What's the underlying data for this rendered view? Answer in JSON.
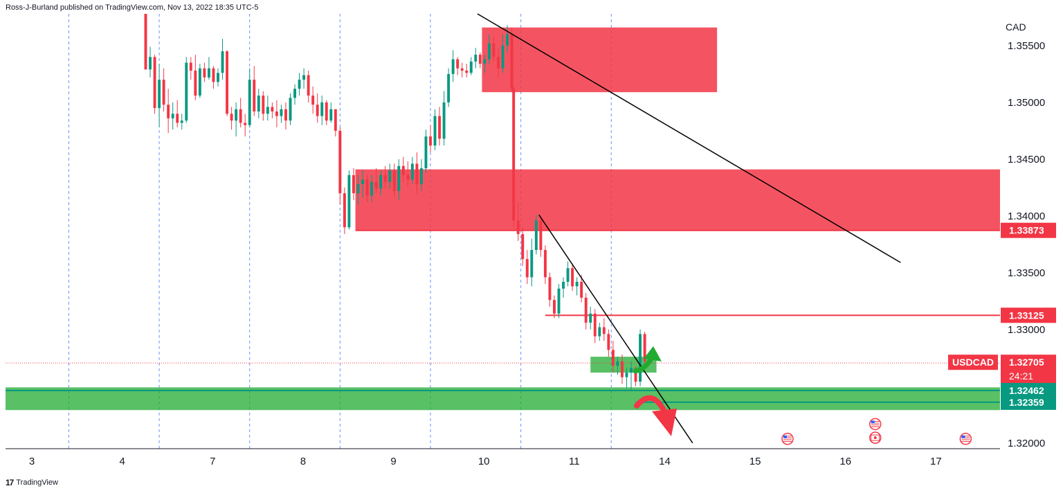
{
  "header": {
    "published_text": "Ross-J-Burland published on TradingView.com, Nov 13, 2022 18:35 UTC-5"
  },
  "footer": {
    "logo_icon": "tradingview-logo-icon",
    "brand": "TradingView"
  },
  "chart_data": {
    "type": "candlestick",
    "symbol": "USDCAD",
    "currency_label": "CAD",
    "y_ticks": [
      "1.35500",
      "1.35000",
      "1.34500",
      "1.34000",
      "1.33500",
      "1.33000",
      "1.32000"
    ],
    "y_tick_values": [
      1.355,
      1.35,
      1.345,
      1.34,
      1.335,
      1.33,
      1.32
    ],
    "y_range": [
      1.3195,
      1.3578
    ],
    "x_ticks": [
      "3",
      "4",
      "7",
      "8",
      "9",
      "10",
      "11",
      "14",
      "15",
      "16",
      "17"
    ],
    "x_range": [
      0,
      11.0
    ],
    "price_labels": [
      {
        "text": "1.33873",
        "value": 1.33873,
        "color": "#f23645"
      },
      {
        "text": "1.33125",
        "value": 1.33125,
        "color": "#f23645"
      },
      {
        "text": "1.32705",
        "value": 1.32705,
        "color": "#f23645",
        "symbol_text": "USDCAD",
        "countdown": "24:21"
      },
      {
        "text": "1.32462",
        "value": 1.32462,
        "color": "#089981"
      },
      {
        "text": "1.32359",
        "value": 1.32359,
        "color": "#089981"
      }
    ],
    "current_price": 1.32705,
    "zones": [
      {
        "kind": "resistance",
        "x0": 5.27,
        "x1": 7.87,
        "y0": 1.3509,
        "y1": 1.3566,
        "color": "#f23645"
      },
      {
        "kind": "resistance",
        "x0": 3.87,
        "x1": 11.0,
        "y0": 1.33873,
        "y1": 1.3441,
        "color": "#f23645"
      },
      {
        "kind": "support",
        "x0": 0,
        "x1": 11.0,
        "y0": 1.3229,
        "y1": 1.3249,
        "color": "#22ab32"
      },
      {
        "kind": "support",
        "x0": 6.47,
        "x1": 7.2,
        "y0": 1.3262,
        "y1": 1.3276,
        "color": "#22ab32"
      }
    ],
    "horizontal_lines": [
      {
        "x0": 3.87,
        "x1": 11.0,
        "value": 1.33873,
        "color": "#f23645"
      },
      {
        "x0": 5.97,
        "x1": 11.0,
        "value": 1.33125,
        "color": "#f23645"
      },
      {
        "x0": 0,
        "x1": 11.0,
        "value": 1.32462,
        "color": "#089981"
      },
      {
        "x0": 6.97,
        "x1": 11.0,
        "value": 1.32359,
        "color": "#089981"
      }
    ],
    "trendlines": [
      {
        "x0": 5.22,
        "y0": 1.3578,
        "x1": 9.9,
        "y1": 1.3359
      },
      {
        "x0": 5.9,
        "y0": 1.3401,
        "x1": 7.6,
        "y1": 1.32
      }
    ],
    "arrows": [
      {
        "kind": "up",
        "color": "#22ab32"
      },
      {
        "kind": "down",
        "color": "#f23645"
      }
    ],
    "event_icons": [
      {
        "name": "us-flag-icon",
        "x": 8.65,
        "y": 1.32
      },
      {
        "name": "us-flag-icon",
        "x": 9.62,
        "y": 1.3213
      },
      {
        "name": "canada-flag-icon",
        "x": 9.62,
        "y": 1.3201
      },
      {
        "name": "us-flag-icon",
        "x": 10.62,
        "y": 1.32
      }
    ],
    "session_lines_x": [
      0.7,
      1.7,
      2.7,
      3.7,
      4.7,
      5.7,
      6.7
    ],
    "candles": [
      [
        1.55,
        1.3578,
        1.3578,
        1.3529,
        1.3529
      ],
      [
        1.6,
        1.3529,
        1.3549,
        1.3522,
        1.354
      ],
      [
        1.65,
        1.354,
        1.3542,
        1.349,
        1.3495
      ],
      [
        1.7,
        1.3495,
        1.3534,
        1.3478,
        1.352
      ],
      [
        1.75,
        1.352,
        1.353,
        1.3492,
        1.3498
      ],
      [
        1.8,
        1.3498,
        1.3512,
        1.3473,
        1.3486
      ],
      [
        1.85,
        1.3486,
        1.35,
        1.3476,
        1.349
      ],
      [
        1.9,
        1.349,
        1.3502,
        1.3478,
        1.3482
      ],
      [
        1.95,
        1.3482,
        1.349,
        1.3476,
        1.3484
      ],
      [
        2.0,
        1.3484,
        1.354,
        1.3482,
        1.3535
      ],
      [
        2.05,
        1.3535,
        1.354,
        1.352,
        1.3528
      ],
      [
        2.1,
        1.3528,
        1.3542,
        1.3502,
        1.3506
      ],
      [
        2.15,
        1.3506,
        1.3534,
        1.3504,
        1.353
      ],
      [
        2.2,
        1.353,
        1.3535,
        1.3518,
        1.3522
      ],
      [
        2.25,
        1.3522,
        1.354,
        1.352,
        1.353
      ],
      [
        2.3,
        1.353,
        1.3532,
        1.3512,
        1.3518
      ],
      [
        2.35,
        1.3518,
        1.353,
        1.3514,
        1.3526
      ],
      [
        2.4,
        1.3526,
        1.3556,
        1.352,
        1.3545
      ],
      [
        2.45,
        1.3545,
        1.3546,
        1.3488,
        1.349
      ],
      [
        2.5,
        1.349,
        1.3496,
        1.3476,
        1.3484
      ],
      [
        2.55,
        1.3484,
        1.35,
        1.347,
        1.3494
      ],
      [
        2.6,
        1.3494,
        1.3504,
        1.3478,
        1.3482
      ],
      [
        2.65,
        1.3482,
        1.349,
        1.347,
        1.348
      ],
      [
        2.7,
        1.348,
        1.353,
        1.3478,
        1.352
      ],
      [
        2.75,
        1.352,
        1.3532,
        1.3488,
        1.3492
      ],
      [
        2.8,
        1.3492,
        1.3512,
        1.3486,
        1.3506
      ],
      [
        2.85,
        1.3506,
        1.351,
        1.3484,
        1.349
      ],
      [
        2.9,
        1.349,
        1.3506,
        1.3484,
        1.3496
      ],
      [
        2.95,
        1.3496,
        1.35,
        1.3486,
        1.3492
      ],
      [
        3.0,
        1.3492,
        1.3502,
        1.3478,
        1.3488
      ],
      [
        3.05,
        1.3488,
        1.3498,
        1.3482,
        1.3494
      ],
      [
        3.1,
        1.3494,
        1.35,
        1.3476,
        1.3484
      ],
      [
        3.15,
        1.3484,
        1.3508,
        1.348,
        1.3504
      ],
      [
        3.2,
        1.3504,
        1.3516,
        1.3498,
        1.3512
      ],
      [
        3.25,
        1.3512,
        1.3526,
        1.3506,
        1.352
      ],
      [
        3.3,
        1.352,
        1.353,
        1.3512,
        1.3524
      ],
      [
        3.35,
        1.3524,
        1.3528,
        1.35,
        1.3506
      ],
      [
        3.4,
        1.3506,
        1.3514,
        1.349,
        1.3498
      ],
      [
        3.45,
        1.3498,
        1.3508,
        1.3482,
        1.3488
      ],
      [
        3.5,
        1.3488,
        1.3506,
        1.348,
        1.35
      ],
      [
        3.55,
        1.35,
        1.3502,
        1.348,
        1.3484
      ],
      [
        3.6,
        1.3484,
        1.35,
        1.3482,
        1.3494
      ],
      [
        3.65,
        1.3494,
        1.3494,
        1.347,
        1.3475
      ],
      [
        3.7,
        1.3475,
        1.3478,
        1.341,
        1.342
      ],
      [
        3.75,
        1.342,
        1.3425,
        1.3384,
        1.339
      ],
      [
        3.8,
        1.339,
        1.344,
        1.3388,
        1.3436
      ],
      [
        3.85,
        1.3436,
        1.3442,
        1.3414,
        1.342
      ],
      [
        3.9,
        1.342,
        1.3436,
        1.341,
        1.3428
      ],
      [
        3.95,
        1.3428,
        1.344,
        1.3416,
        1.3432
      ],
      [
        4.0,
        1.3432,
        1.3436,
        1.3412,
        1.3418
      ],
      [
        4.05,
        1.3418,
        1.3436,
        1.3412,
        1.343
      ],
      [
        4.1,
        1.343,
        1.3442,
        1.342,
        1.3424
      ],
      [
        4.15,
        1.3424,
        1.344,
        1.3418,
        1.3436
      ],
      [
        4.2,
        1.3436,
        1.3444,
        1.3424,
        1.343
      ],
      [
        4.25,
        1.343,
        1.3446,
        1.3424,
        1.344
      ],
      [
        4.3,
        1.344,
        1.3446,
        1.3416,
        1.3422
      ],
      [
        4.35,
        1.3422,
        1.345,
        1.3414,
        1.3444
      ],
      [
        4.4,
        1.3444,
        1.3452,
        1.343,
        1.3436
      ],
      [
        4.45,
        1.3436,
        1.3448,
        1.3426,
        1.3432
      ],
      [
        4.5,
        1.3432,
        1.3452,
        1.3428,
        1.3446
      ],
      [
        4.55,
        1.3446,
        1.3456,
        1.342,
        1.3428
      ],
      [
        4.6,
        1.3428,
        1.345,
        1.3422,
        1.3442
      ],
      [
        4.65,
        1.3442,
        1.3476,
        1.3438,
        1.347
      ],
      [
        4.7,
        1.347,
        1.348,
        1.3456,
        1.3462
      ],
      [
        4.75,
        1.3462,
        1.3494,
        1.3458,
        1.3488
      ],
      [
        4.8,
        1.3488,
        1.3496,
        1.3462,
        1.3468
      ],
      [
        4.85,
        1.3468,
        1.351,
        1.3462,
        1.35
      ],
      [
        4.9,
        1.35,
        1.353,
        1.3496,
        1.3525
      ],
      [
        4.95,
        1.3525,
        1.3546,
        1.3518,
        1.3538
      ],
      [
        5.0,
        1.3538,
        1.354,
        1.3524,
        1.353
      ],
      [
        5.05,
        1.353,
        1.3535,
        1.3522,
        1.3528
      ],
      [
        5.1,
        1.3528,
        1.3534,
        1.3522,
        1.3526
      ],
      [
        5.15,
        1.3526,
        1.354,
        1.3524,
        1.3536
      ],
      [
        5.2,
        1.3536,
        1.3548,
        1.353,
        1.3542
      ],
      [
        5.25,
        1.3542,
        1.3544,
        1.353,
        1.3534
      ],
      [
        5.3,
        1.3534,
        1.3542,
        1.3526,
        1.3538
      ],
      [
        5.35,
        1.3538,
        1.356,
        1.3534,
        1.3552
      ],
      [
        5.4,
        1.3552,
        1.3558,
        1.3536,
        1.354
      ],
      [
        5.45,
        1.354,
        1.3548,
        1.3522,
        1.353
      ],
      [
        5.5,
        1.353,
        1.356,
        1.3526,
        1.355
      ],
      [
        5.55,
        1.355,
        1.3568,
        1.3544,
        1.356
      ],
      [
        5.6,
        1.356,
        1.3566,
        1.3509,
        1.3512
      ],
      [
        5.62,
        1.3512,
        1.3514,
        1.339,
        1.3396
      ],
      [
        5.67,
        1.3396,
        1.3412,
        1.3378,
        1.3384
      ],
      [
        5.72,
        1.3384,
        1.339,
        1.3356,
        1.3362
      ],
      [
        5.77,
        1.3362,
        1.337,
        1.334,
        1.3346
      ],
      [
        5.82,
        1.3346,
        1.338,
        1.3338,
        1.337
      ],
      [
        5.87,
        1.337,
        1.3401,
        1.3366,
        1.3396
      ],
      [
        5.92,
        1.3396,
        1.3398,
        1.3364,
        1.337
      ],
      [
        5.97,
        1.337,
        1.3374,
        1.334,
        1.3346
      ],
      [
        6.02,
        1.3346,
        1.335,
        1.332,
        1.3326
      ],
      [
        6.07,
        1.3326,
        1.333,
        1.331,
        1.3314
      ],
      [
        6.12,
        1.3314,
        1.334,
        1.331,
        1.3336
      ],
      [
        6.17,
        1.3336,
        1.3346,
        1.3328,
        1.3342
      ],
      [
        6.22,
        1.3342,
        1.336,
        1.3338,
        1.3354
      ],
      [
        6.27,
        1.3354,
        1.3358,
        1.3334,
        1.3338
      ],
      [
        6.32,
        1.3338,
        1.3346,
        1.333,
        1.3342
      ],
      [
        6.37,
        1.3342,
        1.3348,
        1.3324,
        1.3328
      ],
      [
        6.42,
        1.3328,
        1.3332,
        1.33,
        1.3306
      ],
      [
        6.47,
        1.3306,
        1.332,
        1.33,
        1.3314
      ],
      [
        6.52,
        1.3314,
        1.3318,
        1.3288,
        1.3294
      ],
      [
        6.57,
        1.3294,
        1.3306,
        1.329,
        1.3302
      ],
      [
        6.62,
        1.3302,
        1.331,
        1.329,
        1.3296
      ],
      [
        6.67,
        1.3296,
        1.33,
        1.3276,
        1.3282
      ],
      [
        6.72,
        1.3282,
        1.329,
        1.3262,
        1.3268
      ],
      [
        6.77,
        1.3268,
        1.3276,
        1.326,
        1.3272
      ],
      [
        6.82,
        1.3272,
        1.3278,
        1.3252,
        1.3258
      ],
      [
        6.87,
        1.3258,
        1.3266,
        1.3248,
        1.3262
      ],
      [
        6.92,
        1.3262,
        1.3272,
        1.3246,
        1.3266
      ],
      [
        6.97,
        1.3266,
        1.3268,
        1.325,
        1.3254
      ],
      [
        7.02,
        1.3254,
        1.33,
        1.325,
        1.3296
      ],
      [
        7.07,
        1.3296,
        1.3298,
        1.3268,
        1.3272
      ]
    ]
  }
}
